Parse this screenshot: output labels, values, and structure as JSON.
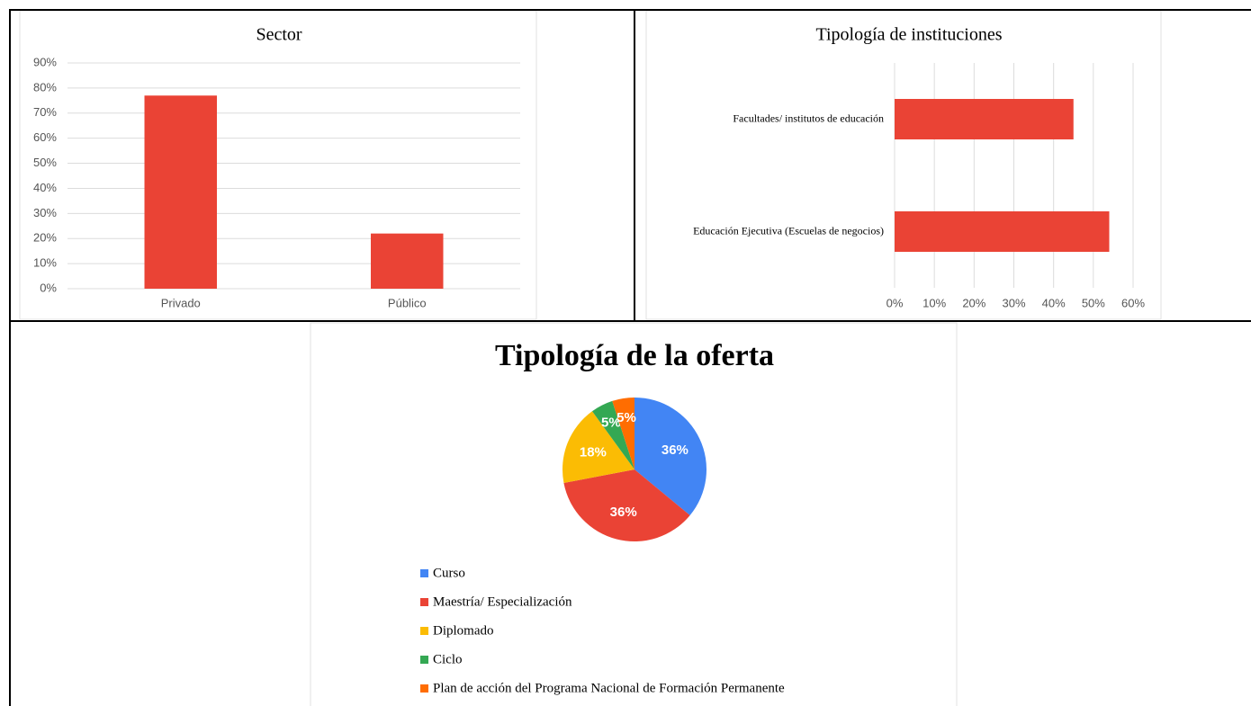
{
  "chart_data": [
    {
      "type": "bar",
      "title": "Sector",
      "categories": [
        "Privado",
        "Público"
      ],
      "values": [
        77,
        22
      ],
      "color": "#ea4335",
      "ylim": [
        0,
        90
      ],
      "yticks": [
        {
          "value": 0,
          "label": "0%"
        },
        {
          "value": 10,
          "label": "10%"
        },
        {
          "value": 20,
          "label": "20%"
        },
        {
          "value": 30,
          "label": "30%"
        },
        {
          "value": 40,
          "label": "40%"
        },
        {
          "value": 50,
          "label": "50%"
        },
        {
          "value": 60,
          "label": "60%"
        },
        {
          "value": 70,
          "label": "70%"
        },
        {
          "value": 80,
          "label": "80%"
        },
        {
          "value": 90,
          "label": "90%"
        }
      ],
      "grid": true
    },
    {
      "type": "barh",
      "title": "Tipología de instituciones",
      "categories": [
        "Facultades/ institutos de educación",
        "Educación Ejecutiva (Escuelas de negocios)"
      ],
      "values": [
        45,
        54
      ],
      "color": "#ea4335",
      "xlim": [
        0,
        60
      ],
      "xticks": [
        {
          "value": 0,
          "label": "0%"
        },
        {
          "value": 10,
          "label": "10%"
        },
        {
          "value": 20,
          "label": "20%"
        },
        {
          "value": 30,
          "label": "30%"
        },
        {
          "value": 40,
          "label": "40%"
        },
        {
          "value": 50,
          "label": "50%"
        },
        {
          "value": 60,
          "label": "60%"
        }
      ],
      "grid": true
    },
    {
      "type": "pie",
      "title": "Tipología de la oferta",
      "categories": [
        "Curso",
        "Maestría/ Especialización",
        "Diplomado",
        "Ciclo",
        "Plan de acción del Programa Nacional de Formación Permanente"
      ],
      "values": [
        36,
        36,
        18,
        5,
        5
      ],
      "value_labels": [
        "36%",
        "36%",
        "18%",
        "5%",
        "5%"
      ],
      "colors": [
        "#4285f4",
        "#ea4335",
        "#fbbc04",
        "#34a853",
        "#ff6d01"
      ]
    }
  ]
}
